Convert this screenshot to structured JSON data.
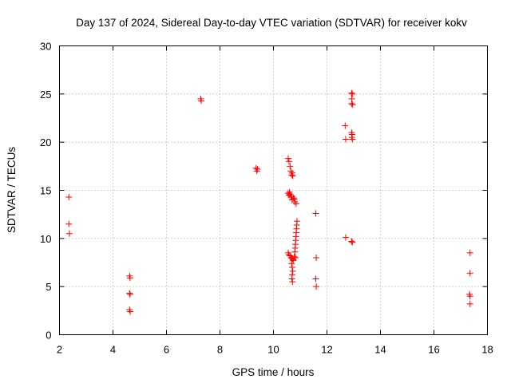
{
  "chart_data": {
    "type": "scatter",
    "title": "Day 137 of 2024, Sidereal Day-to-day VTEC variation (SDTVAR) for receiver kokv",
    "xlabel": "GPS time / hours",
    "ylabel": "SDTVAR / TECUs",
    "xlim": [
      2,
      18
    ],
    "ylim": [
      0,
      30
    ],
    "xticks": [
      2,
      4,
      6,
      8,
      10,
      12,
      14,
      16,
      18
    ],
    "yticks": [
      0,
      5,
      10,
      15,
      20,
      25,
      30
    ],
    "grid": true,
    "marker": "+",
    "color": "#ff0000",
    "series": [
      {
        "name": "SDTVAR",
        "x": [
          2.35,
          2.35,
          2.37,
          4.62,
          4.64,
          4.62,
          4.64,
          4.62,
          4.64,
          7.28,
          7.3,
          9.35,
          9.38,
          9.4,
          10.55,
          10.58,
          10.62,
          10.65,
          10.68,
          10.72,
          10.7,
          10.55,
          10.58,
          10.62,
          10.65,
          10.7,
          10.75,
          10.8,
          10.85,
          10.6,
          10.68,
          10.78,
          10.88,
          10.87,
          10.86,
          10.85,
          10.84,
          10.83,
          10.82,
          10.81,
          10.8,
          10.55,
          10.58,
          10.62,
          10.66,
          10.7,
          10.74,
          10.78,
          10.82,
          10.68,
          10.7,
          10.72,
          10.7,
          10.69,
          10.71,
          10.73,
          11.58,
          11.6,
          11.58,
          11.6,
          12.68,
          12.7,
          12.7,
          12.92,
          12.95,
          12.93,
          12.92,
          12.96,
          12.92,
          12.94,
          12.93,
          12.95,
          12.92,
          12.95,
          17.35,
          17.35,
          17.33,
          17.35,
          17.35
        ],
        "y": [
          14.3,
          11.5,
          10.5,
          6.1,
          5.9,
          4.3,
          4.2,
          2.6,
          2.4,
          24.5,
          24.3,
          17.3,
          17.0,
          17.2,
          18.3,
          18.0,
          17.5,
          17.0,
          16.6,
          16.5,
          16.8,
          14.7,
          14.5,
          14.6,
          14.3,
          14.0,
          14.2,
          13.8,
          13.6,
          14.8,
          14.4,
          14.1,
          11.8,
          11.4,
          11.0,
          10.6,
          10.2,
          9.8,
          9.4,
          9.0,
          8.6,
          8.5,
          8.3,
          8.2,
          8.0,
          7.9,
          7.8,
          8.1,
          8.0,
          7.4,
          7.0,
          6.6,
          6.2,
          5.8,
          5.5,
          7.7,
          12.6,
          8.0,
          5.8,
          5.0,
          21.7,
          20.3,
          10.1,
          25.1,
          25.0,
          24.5,
          24.0,
          23.9,
          21.0,
          20.8,
          20.5,
          20.3,
          9.7,
          9.6,
          8.5,
          6.4,
          4.2,
          4.0,
          3.2
        ]
      }
    ]
  }
}
